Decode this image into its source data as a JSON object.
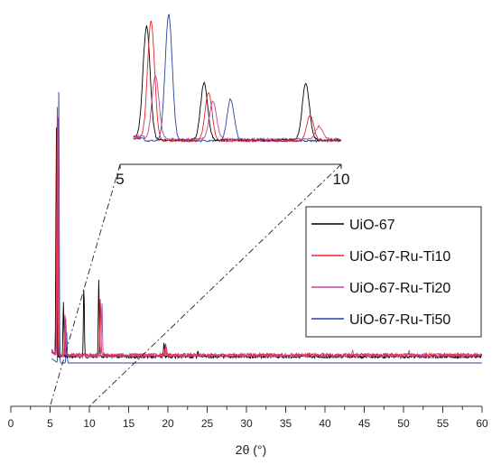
{
  "chart_data": {
    "type": "line",
    "title": "",
    "xlabel": "2θ (°)",
    "ylabel": "",
    "xlim": [
      0,
      60
    ],
    "x_ticks": [
      "0",
      "5",
      "10",
      "15",
      "20",
      "25",
      "30",
      "35",
      "40",
      "45",
      "50",
      "55",
      "60"
    ],
    "y_axis_shown": false,
    "grid": false,
    "legend_position": "right",
    "series": [
      {
        "name": "UiO-67",
        "color": "#000000"
      },
      {
        "name": "UiO-67-Ru-Ti10",
        "color": "#e8242b"
      },
      {
        "name": "UiO-67-Ru-Ti20",
        "color": "#c2449a"
      },
      {
        "name": "UiO-67-Ru-Ti50",
        "color": "#2a3fa0"
      }
    ],
    "main_peaks": [
      {
        "series": "UiO-67",
        "peaks": [
          [
            5.8,
            0.84
          ],
          [
            6.7,
            0.2
          ],
          [
            9.3,
            0.26
          ],
          [
            11.2,
            0.28
          ],
          [
            19.5,
            0.05
          ],
          [
            23.8,
            0.02
          ]
        ]
      },
      {
        "series": "UiO-67-Ru-Ti10",
        "peaks": [
          [
            5.9,
            0.96
          ],
          [
            6.9,
            0.16
          ],
          [
            11.4,
            0.22
          ],
          [
            19.7,
            0.04
          ]
        ]
      },
      {
        "series": "UiO-67-Ru-Ti20",
        "peaks": [
          [
            6.0,
            0.93
          ],
          [
            7.0,
            0.14
          ],
          [
            11.6,
            0.2
          ],
          [
            19.8,
            0.04
          ],
          [
            43.5,
            0.02
          ],
          [
            50.7,
            0.02
          ]
        ]
      },
      {
        "series": "UiO-67-Ru-Ti50",
        "peaks": [
          [
            6.1,
            1.0
          ],
          [
            7.1,
            0.12
          ]
        ]
      }
    ],
    "inset": {
      "xlim": [
        5,
        10
      ],
      "x_ticks": [
        "5",
        "10"
      ],
      "peaks": [
        {
          "series": "UiO-67",
          "peaks": [
            [
              5.6,
              0.9
            ],
            [
              6.9,
              0.45
            ],
            [
              9.2,
              0.45
            ]
          ]
        },
        {
          "series": "UiO-67-Ru-Ti10",
          "peaks": [
            [
              5.7,
              0.95
            ],
            [
              7.0,
              0.38
            ],
            [
              9.3,
              0.2
            ]
          ]
        },
        {
          "series": "UiO-67-Ru-Ti20",
          "peaks": [
            [
              5.8,
              0.5
            ],
            [
              7.1,
              0.3
            ],
            [
              9.5,
              0.1
            ]
          ]
        },
        {
          "series": "UiO-67-Ru-Ti50",
          "peaks": [
            [
              6.1,
              1.0
            ],
            [
              7.5,
              0.33
            ]
          ]
        }
      ]
    }
  }
}
